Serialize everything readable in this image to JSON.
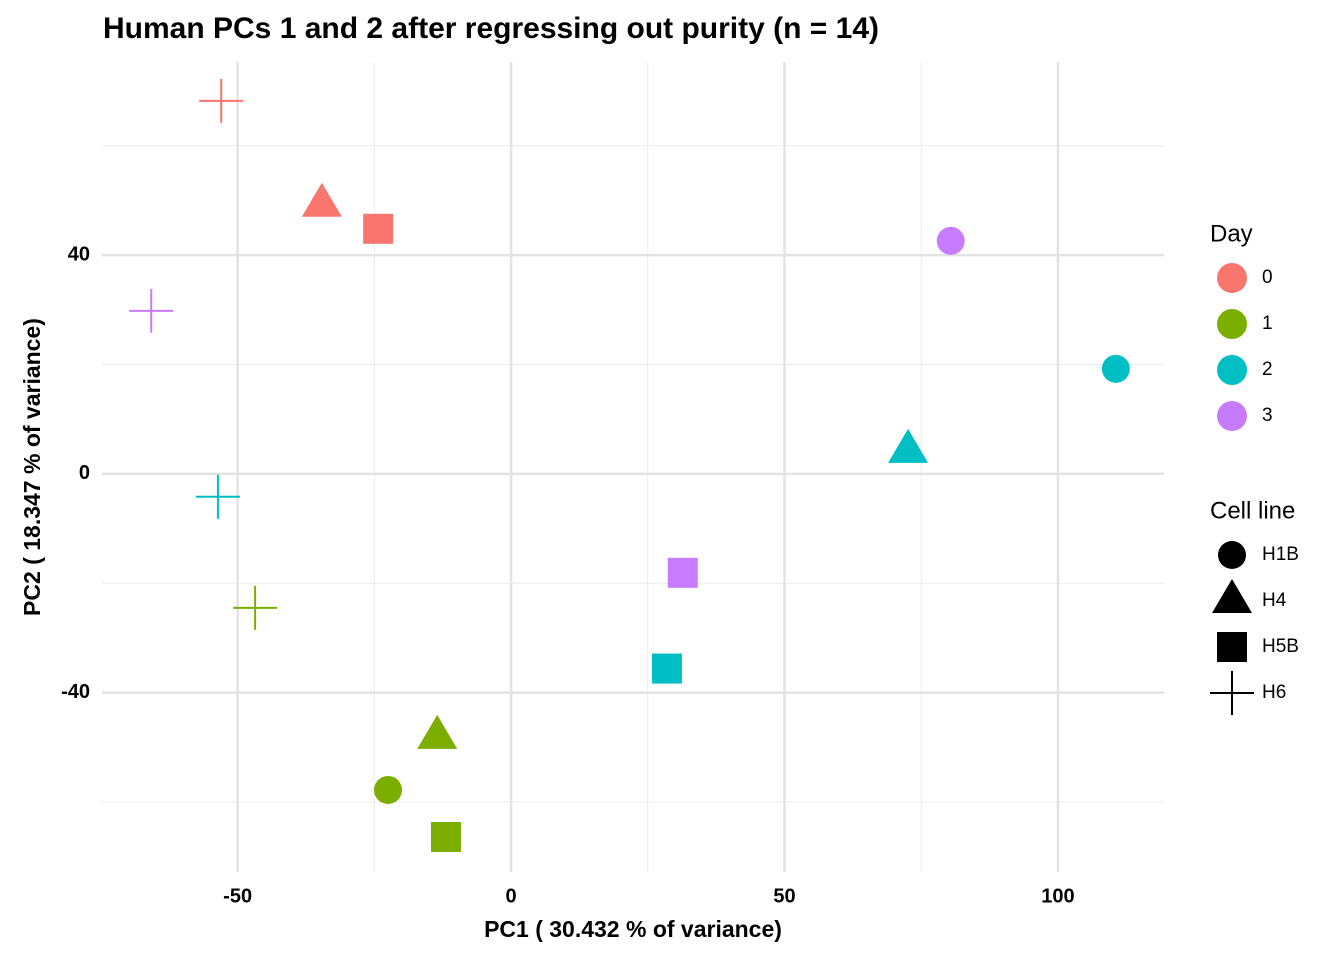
{
  "chart_data": {
    "type": "scatter",
    "title": "Human PCs 1 and 2 after regressing out purity (n = 14)",
    "x_label": "PC1 ( 30.432 % of variance)",
    "y_label": "PC2 ( 18.347 % of variance)",
    "xlim": [
      -74.8,
      119.4
    ],
    "ylim": [
      -72.8,
      75.3
    ],
    "xticks": [
      -50,
      0,
      50,
      100
    ],
    "yticks": [
      -40,
      0,
      40
    ],
    "x_minor_grid": [
      -25,
      25,
      75
    ],
    "y_minor_grid": [
      -60,
      -20,
      20,
      60
    ],
    "grid": true,
    "color_legend_title": "Day",
    "shape_legend": {
      "title": "Cell line",
      "entries": [
        "H1B",
        "H4",
        "H5B",
        "H6"
      ]
    },
    "series": [
      {
        "name": "0",
        "color": "#F8766D",
        "x": [
          -53.0,
          -34.6,
          -24.3
        ],
        "values": [
          68.2,
          49.2,
          44.8
        ],
        "cell_line": [
          "H6",
          "H4",
          "H5B"
        ]
      },
      {
        "name": "1",
        "color": "#7CAE00",
        "x": [
          -46.8,
          -13.5,
          -22.5,
          -11.9
        ],
        "values": [
          -24.5,
          -48.1,
          -57.8,
          -66.4
        ],
        "cell_line": [
          "H6",
          "H4",
          "H1B",
          "H5B"
        ]
      },
      {
        "name": "2",
        "color": "#00BFC4",
        "x": [
          -53.6,
          110.6,
          72.6,
          28.5
        ],
        "values": [
          -4.2,
          19.2,
          4.2,
          -35.6
        ],
        "cell_line": [
          "H6",
          "H1B",
          "H4",
          "H5B"
        ]
      },
      {
        "name": "3",
        "color": "#C77CFF",
        "x": [
          -65.8,
          80.4,
          31.4
        ],
        "values": [
          29.8,
          42.6,
          -18.1
        ],
        "cell_line": [
          "H6",
          "H1B",
          "H5B"
        ]
      }
    ]
  }
}
